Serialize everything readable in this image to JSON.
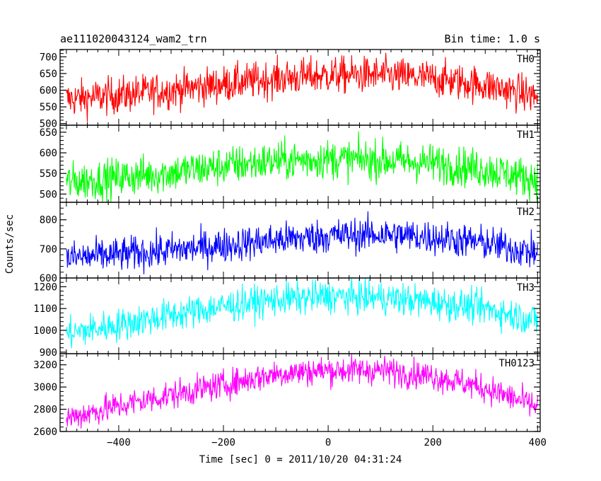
{
  "chart_data": {
    "type": "line",
    "title": "ae111020043124_wam2_trn",
    "subtitle": "Bin time: 1.0 s",
    "xlabel": "Time [sec] 0 = 2011/10/20 04:31:24",
    "ylabel": "Counts/sec",
    "xlim": [
      -512,
      405
    ],
    "x_ticks": [
      -400,
      -200,
      0,
      200,
      400
    ],
    "x_tick_labels": [
      "−400",
      "−200",
      "0",
      "200",
      "400"
    ],
    "x_range_data": [
      -500,
      400
    ],
    "bin_time_s": 1.0,
    "grid": false,
    "legend": "none",
    "panels": [
      {
        "name": "TH0",
        "color": "#ff0000",
        "ylim": [
          495,
          722
        ],
        "yticks": [
          500,
          550,
          600,
          650,
          700
        ],
        "profile_x": [
          -500,
          -400,
          -300,
          -200,
          -100,
          0,
          100,
          200,
          300,
          400
        ],
        "profile_y": [
          572,
          585,
          600,
          618,
          635,
          645,
          645,
          635,
          615,
          580
        ],
        "scatter": 28
      },
      {
        "name": "TH1",
        "color": "#00ff00",
        "ylim": [
          480,
          667
        ],
        "yticks": [
          500,
          550,
          600,
          650
        ],
        "profile_x": [
          -500,
          -400,
          -300,
          -200,
          -100,
          0,
          100,
          200,
          300,
          400
        ],
        "profile_y": [
          528,
          540,
          552,
          568,
          580,
          585,
          582,
          575,
          560,
          535
        ],
        "scatter": 24
      },
      {
        "name": "TH2",
        "color": "#0000ff",
        "ylim": [
          600,
          860
        ],
        "yticks": [
          600,
          700,
          800
        ],
        "profile_x": [
          -500,
          -400,
          -300,
          -200,
          -100,
          0,
          100,
          200,
          300,
          400
        ],
        "profile_y": [
          668,
          680,
          695,
          712,
          730,
          745,
          750,
          740,
          720,
          685
        ],
        "scatter": 30
      },
      {
        "name": "TH3",
        "color": "#00ffff",
        "ylim": [
          893,
          1240
        ],
        "yticks": [
          900,
          1000,
          1100,
          1200
        ],
        "profile_x": [
          -500,
          -400,
          -300,
          -200,
          -100,
          0,
          100,
          200,
          300,
          400
        ],
        "profile_y": [
          985,
          1025,
          1070,
          1110,
          1140,
          1155,
          1150,
          1130,
          1100,
          1045
        ],
        "scatter": 38
      },
      {
        "name": "TH0123",
        "color": "#ff00ff",
        "ylim": [
          2600,
          3300
        ],
        "yticks": [
          2600,
          2800,
          3000,
          3200
        ],
        "profile_x": [
          -500,
          -400,
          -300,
          -200,
          -100,
          0,
          100,
          200,
          300,
          400
        ],
        "profile_y": [
          2720,
          2830,
          2930,
          3020,
          3120,
          3150,
          3150,
          3100,
          2990,
          2820
        ],
        "scatter": 65
      }
    ]
  }
}
